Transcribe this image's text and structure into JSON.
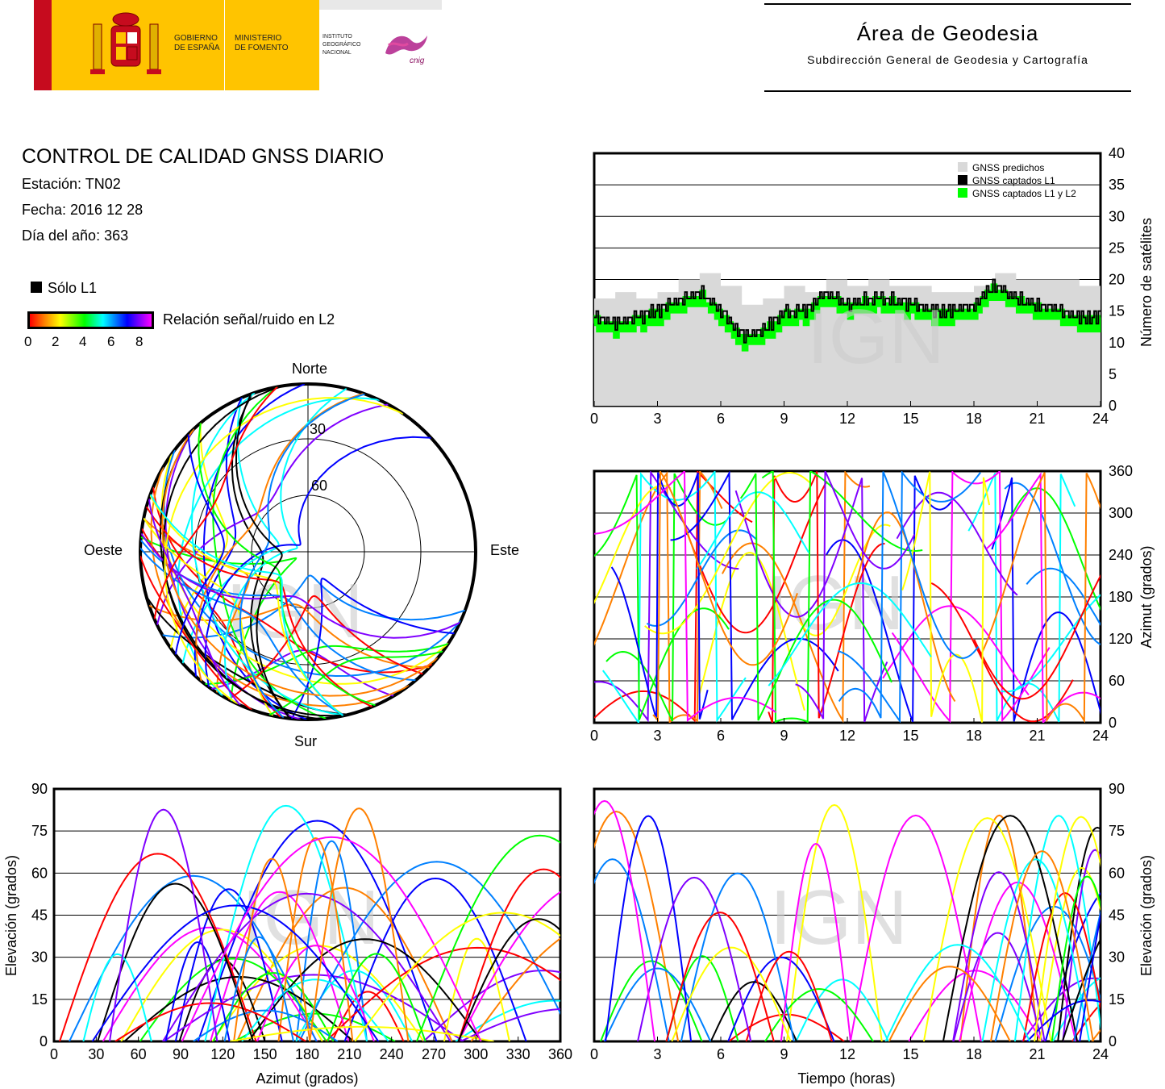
{
  "header": {
    "gov_line1": "GOBIERNO",
    "gov_line2": "DE ESPAÑA",
    "min_line1": "MINISTERIO",
    "min_line2": "DE FOMENTO",
    "ign_line1": "INSTITUTO",
    "ign_line2": "GEOGRÁFICO",
    "ign_line3": "NACIONAL",
    "cnig": "cnig",
    "area_title": "Área de Geodesia",
    "area_subtitle": "Subdirección General de Geodesia y Cartografía"
  },
  "report": {
    "title": "CONTROL DE CALIDAD GNSS DIARIO",
    "station": "Estación: TN02",
    "date": "Fecha: 2016 12 28",
    "doy": "Día del año: 363"
  },
  "legend": {
    "solo_l1": "Sólo L1",
    "snr_label": "Relación señal/ruido en L2",
    "snr_ticks": [
      "0",
      "2",
      "4",
      "6",
      "8"
    ],
    "snr_colors": [
      "#ff0000",
      "#ff8000",
      "#ffff00",
      "#00ff00",
      "#00ffff",
      "#0080ff",
      "#0000ff",
      "#8000ff",
      "#ff00ff"
    ]
  },
  "watermark": "IGN",
  "chart_data": [
    {
      "type": "area",
      "name": "satellites",
      "ylabel": "Número de satélites",
      "xlim": [
        0,
        24
      ],
      "ylim": [
        0,
        40
      ],
      "xticks": [
        "0",
        "3",
        "6",
        "9",
        "12",
        "15",
        "18",
        "21",
        "24"
      ],
      "yticks": [
        "0",
        "5",
        "10",
        "15",
        "20",
        "25",
        "30",
        "35",
        "40"
      ],
      "legend": [
        "GNSS predichos",
        "GNSS captados L1",
        "GNSS captados L1 y L2"
      ],
      "legend_colors": [
        "#d9d9d9",
        "#000000",
        "#00ff00"
      ],
      "legend_position": "top-right",
      "x": [
        0,
        1,
        2,
        3,
        4,
        5,
        6,
        7,
        8,
        9,
        10,
        11,
        12,
        13,
        14,
        15,
        16,
        17,
        18,
        19,
        20,
        21,
        22,
        23,
        24
      ],
      "series": [
        {
          "name": "GNSS predichos",
          "values": [
            17,
            18,
            17,
            18,
            20,
            21,
            19,
            16,
            17,
            19,
            18,
            20,
            19,
            20,
            19,
            19,
            18,
            18,
            19,
            21,
            20,
            20,
            20,
            19,
            19
          ]
        },
        {
          "name": "GNSS captados L1",
          "values": [
            14,
            13,
            14,
            15,
            17,
            18,
            15,
            11,
            12,
            15,
            15,
            18,
            16,
            17,
            17,
            16,
            15,
            15,
            16,
            19,
            17,
            16,
            15,
            14,
            14
          ]
        },
        {
          "name": "GNSS captados L1 y L2",
          "values": [
            13,
            12,
            13,
            14,
            16,
            17,
            14,
            10,
            11,
            14,
            14,
            17,
            15,
            16,
            16,
            15,
            14,
            14,
            15,
            18,
            16,
            15,
            14,
            13,
            13
          ]
        }
      ]
    },
    {
      "type": "scatter",
      "name": "azimuth-time",
      "ylabel": "Azimut (grados)",
      "xlim": [
        0,
        24
      ],
      "ylim": [
        0,
        360
      ],
      "xticks": [
        "0",
        "3",
        "6",
        "9",
        "12",
        "15",
        "18",
        "21",
        "24"
      ],
      "yticks": [
        "0",
        "60",
        "120",
        "180",
        "240",
        "300",
        "360"
      ]
    },
    {
      "type": "scatter",
      "name": "skyplot",
      "labels": {
        "north": "Norte",
        "south": "Sur",
        "east": "Este",
        "west": "Oeste"
      },
      "rings": [
        "30",
        "60"
      ]
    },
    {
      "type": "scatter",
      "name": "elevation-azimuth",
      "xlabel": "Azimut (grados)",
      "ylabel": "Elevación (grados)",
      "xlim": [
        0,
        360
      ],
      "ylim": [
        0,
        90
      ],
      "xticks": [
        "0",
        "30",
        "60",
        "90",
        "120",
        "150",
        "180",
        "210",
        "240",
        "270",
        "300",
        "330",
        "360"
      ],
      "yticks": [
        "0",
        "15",
        "30",
        "45",
        "60",
        "75",
        "90"
      ]
    },
    {
      "type": "scatter",
      "name": "elevation-time",
      "xlabel": "Tiempo (horas)",
      "ylabel": "Elevación (grados)",
      "xlim": [
        0,
        24
      ],
      "ylim": [
        0,
        90
      ],
      "xticks": [
        "0",
        "3",
        "6",
        "9",
        "12",
        "15",
        "18",
        "21",
        "24"
      ],
      "yticks": [
        "0",
        "15",
        "30",
        "45",
        "60",
        "75",
        "90"
      ]
    }
  ]
}
